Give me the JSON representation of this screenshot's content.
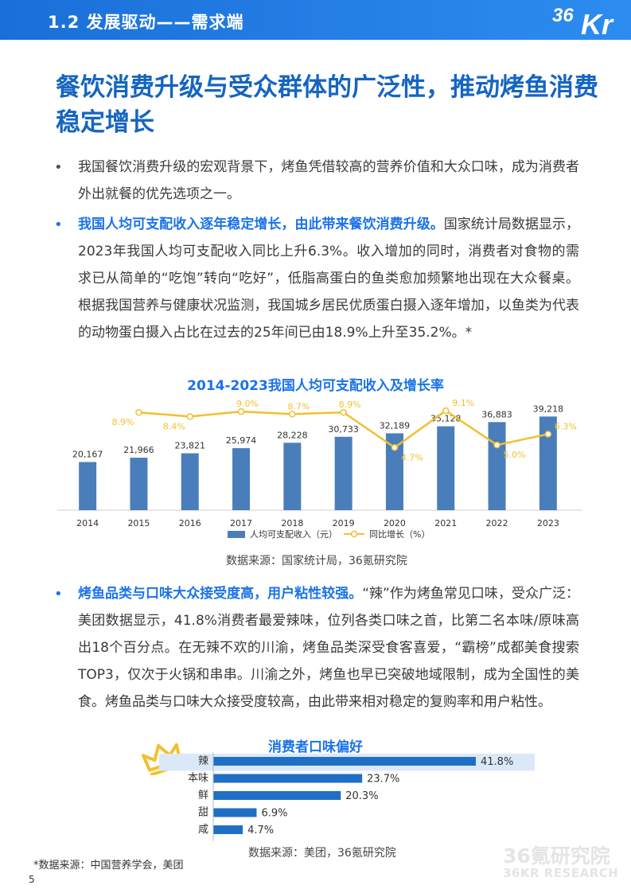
{
  "header": {
    "section_title": "1.2 发展驱动——需求端",
    "logo_36": "36",
    "logo_kr": "Kr"
  },
  "headline": "餐饮消费升级与受众群体的广泛性，推动烤鱼消费稳定增长",
  "paragraphs": {
    "p1": "我国餐饮消费升级的宏观背景下，烤鱼凭借较高的营养价值和大众口味，成为消费者外出就餐的优先选项之一。",
    "p2_bold": "我国人均可支配收入逐年稳定增长，由此带来餐饮消费升级。",
    "p2_rest": "国家统计局数据显示，2023年我国人均可支配收入同比上升6.3%。收入增加的同时，消费者对食物的需求已从简单的“吃饱”转向“吃好”，低脂高蛋白的鱼类愈加频繁地出现在大众餐桌。根据我国营养与健康状况监测，我国城乡居民优质蛋白摄入逐年增加，以鱼类为代表的动物蛋白摄入占比在过去的25年间已由18.9%上升至35.2%。*",
    "p3_bold": "烤鱼品类与口味大众接受度高，用户粘性较强。",
    "p3_rest": "“辣”作为烤鱼常见口味，受众广泛：美团数据显示，41.8%消费者最爱辣味，位列各类口味之首，比第二名本味/原味高出18个百分点。在无辣不欢的川渝，烤鱼品类深受食客喜爱，“霸榜”成都美食搜索TOP3，仅次于火锅和串串。川渝之外，烤鱼也早已突破地域限制，成为全国性的美食。烤鱼品类与口味大众接受度较高，由此带来相对稳定的复购率和用户粘性。"
  },
  "bullet_symbol": "•",
  "chart_data": [
    {
      "type": "bar",
      "title": "2014-2023我国人均可支配收入及增长率",
      "categories": [
        "2014",
        "2015",
        "2016",
        "2017",
        "2018",
        "2019",
        "2020",
        "2021",
        "2022",
        "2023"
      ],
      "series": [
        {
          "name": "人均可支配收入（元）",
          "type": "bar",
          "color": "#4a7ebb",
          "values": [
            20167,
            21966,
            23821,
            25974,
            28228,
            30733,
            32189,
            35128,
            36883,
            39218
          ],
          "labels": [
            "20,167",
            "21,966",
            "23,821",
            "25,974",
            "28,228",
            "30,733",
            "32,189",
            "35,128",
            "36,883",
            "39,218"
          ]
        },
        {
          "name": "同比增长（%）",
          "type": "line",
          "color": "#f2c02e",
          "values": [
            null,
            8.9,
            8.4,
            9.0,
            8.7,
            8.9,
            4.7,
            9.1,
            5.0,
            6.3
          ],
          "labels": [
            "",
            "8.9%",
            "8.4%",
            "9.0%",
            "8.7%",
            "8.9%",
            "4.7%",
            "9.1%",
            "5.0%",
            "6.3%"
          ]
        }
      ],
      "legend_position": "bottom",
      "source": "数据来源：国家统计局，36氪研究院"
    },
    {
      "type": "bar",
      "orientation": "horizontal",
      "title": "消费者口味偏好",
      "categories": [
        "辣",
        "本味",
        "鲜",
        "甜",
        "咸"
      ],
      "values": [
        41.8,
        23.7,
        20.3,
        6.9,
        4.7
      ],
      "labels": [
        "41.8%",
        "23.7%",
        "20.3%",
        "6.9%",
        "4.7%"
      ],
      "color": "#1f6fc5",
      "highlight_color": "#dbe8f7",
      "highlight_category": "辣",
      "source": "数据来源：美团，36氪研究院"
    }
  ],
  "footnote": "*数据来源：中国营养学会，美团",
  "page_number": "5",
  "watermark": {
    "cn": "36氪研究院",
    "en": "36KR RESEARCH"
  },
  "icons": {
    "crown": "crown-icon"
  },
  "colors": {
    "accent_blue": "#1a73e8",
    "headline_blue": "#1565c0",
    "bar_blue": "#4a7ebb",
    "line_yellow": "#f2c02e"
  }
}
